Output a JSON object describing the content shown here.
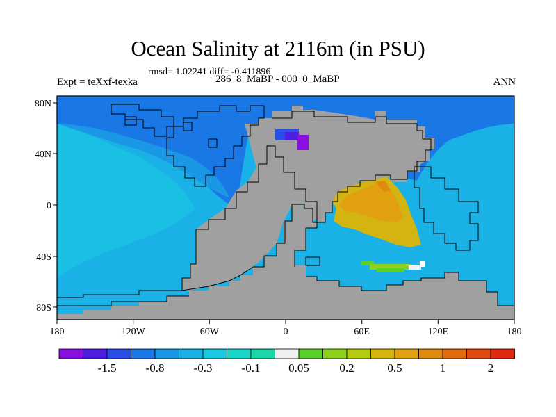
{
  "header": {
    "title": "Ocean Salinity at 2116m (in PSU)",
    "stats": "rmsd= 1.02241 diff= -0.411896",
    "experiment": "Expt = teXxf-texka",
    "period": "286_8_MaBP - 000_0_MaBP",
    "season": "ANN"
  },
  "map": {
    "lon_ticks": [
      "180",
      "120W",
      "60W",
      "0",
      "60E",
      "120E",
      "180"
    ],
    "lat_ticks": [
      "80N",
      "40N",
      "0",
      "40S",
      "80S"
    ],
    "land_color": "#a0a0a0"
  },
  "colorbar": {
    "colors": [
      "#8a10e0",
      "#4f1fe0",
      "#2a4fe6",
      "#1a78e6",
      "#1a98e6",
      "#1ab2e6",
      "#1ac8e0",
      "#1ad6c8",
      "#1ad6a8",
      "#f0f0f0",
      "#5ad02a",
      "#8cd21a",
      "#b4cc10",
      "#d4b410",
      "#e0a010",
      "#e08a10",
      "#e06a10",
      "#e04a10",
      "#e02a10"
    ],
    "labels": [
      "-1.5",
      "-0.8",
      "-0.3",
      "-0.1",
      "0.05",
      "0.2",
      "0.5",
      "1",
      "2"
    ]
  }
}
